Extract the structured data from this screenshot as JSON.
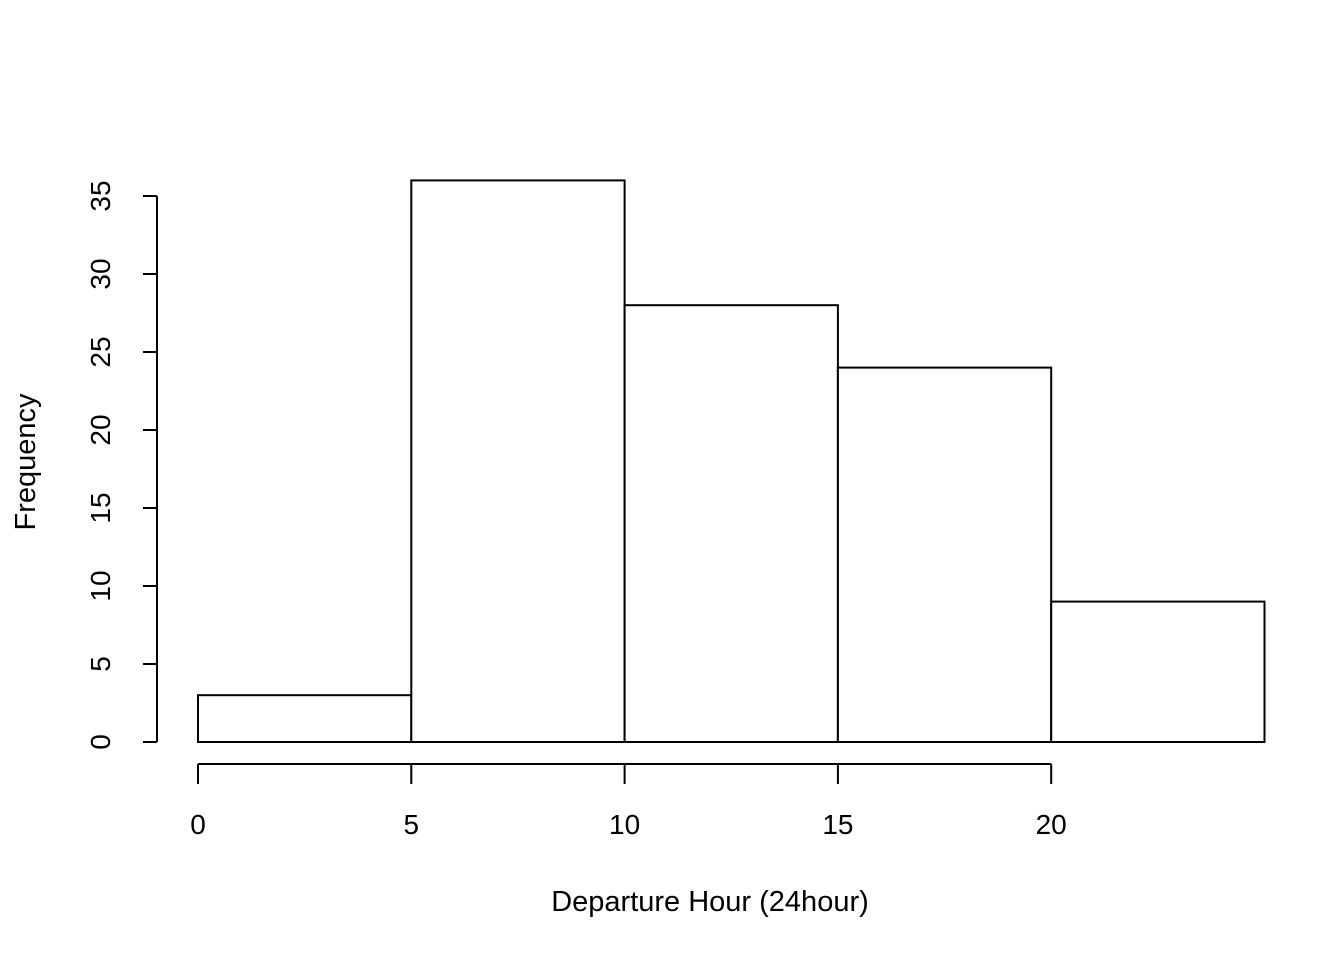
{
  "chart_data": {
    "type": "bar",
    "title": "",
    "xlabel": "Departure Hour (24hour)",
    "ylabel": "Frequency",
    "bins": [
      {
        "start": 0,
        "end": 5,
        "count": 3
      },
      {
        "start": 5,
        "end": 10,
        "count": 36
      },
      {
        "start": 10,
        "end": 15,
        "count": 28
      },
      {
        "start": 15,
        "end": 20,
        "count": 24
      },
      {
        "start": 20,
        "end": 25,
        "count": 9
      }
    ],
    "xlim": [
      0,
      25
    ],
    "ylim": [
      0,
      36
    ],
    "x_ticks": [
      "0",
      "5",
      "10",
      "15",
      "20"
    ],
    "y_ticks": [
      "0",
      "5",
      "10",
      "15",
      "20",
      "25",
      "30",
      "35"
    ],
    "grid": false,
    "legend": "none"
  }
}
